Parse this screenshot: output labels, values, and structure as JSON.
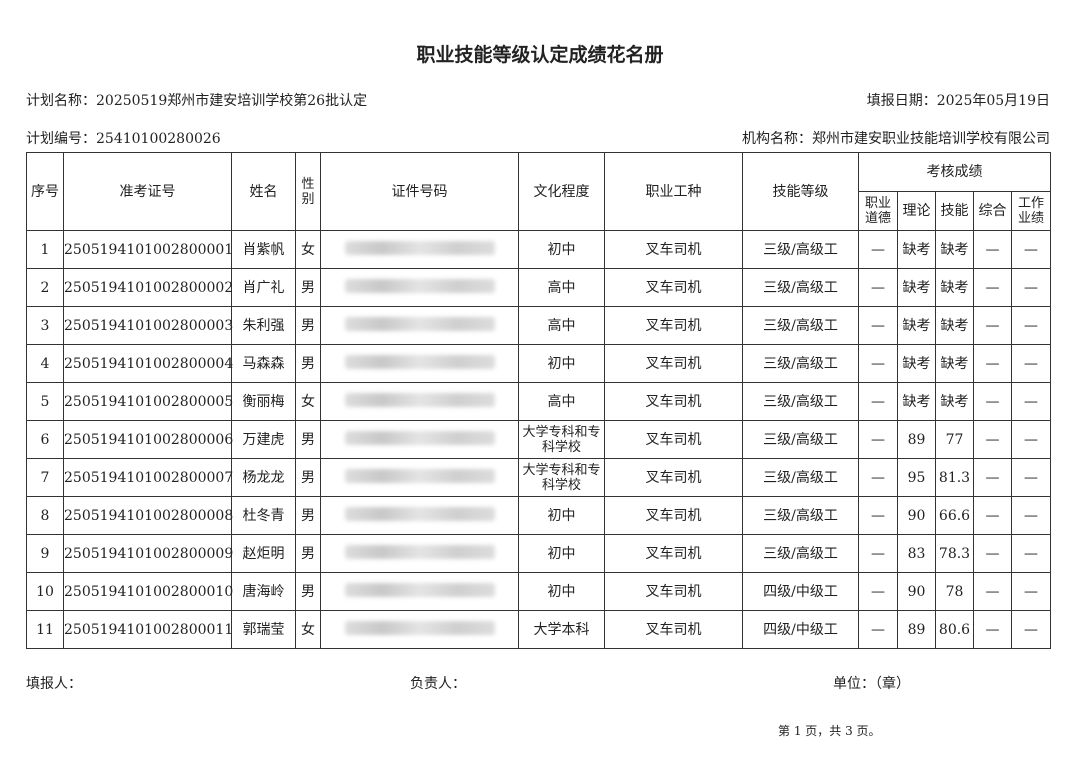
{
  "title": "职业技能等级认定成绩花名册",
  "plan_name": "计划名称：20250519郑州市建安培训学校第26批认定",
  "fill_date": "填报日期：2025年05月19日",
  "plan_no": "计划编号：25410100280026",
  "org_name": "机构名称：郑州市建安职业技能培训学校有限公司",
  "headers": {
    "seq": "序号",
    "exam_no": "准考证号",
    "name": "姓名",
    "gender": "性别",
    "id_no": "证件号码",
    "education": "文化程度",
    "occupation": "职业工种",
    "level": "技能等级",
    "scores": "考核成绩",
    "ethics": "职业道德",
    "theory": "理论",
    "skill": "技能",
    "overall": "综合",
    "work": "工作业绩"
  },
  "rows": [
    {
      "seq": "1",
      "exam_no": "2505194101002800001",
      "name": "肖紫帆",
      "gender": "女",
      "education": "初中",
      "occupation": "叉车司机",
      "level": "三级/高级工",
      "ethics": "—",
      "theory": "缺考",
      "skill": "缺考",
      "overall": "—",
      "work": "—"
    },
    {
      "seq": "2",
      "exam_no": "2505194101002800002",
      "name": "肖广礼",
      "gender": "男",
      "education": "高中",
      "occupation": "叉车司机",
      "level": "三级/高级工",
      "ethics": "—",
      "theory": "缺考",
      "skill": "缺考",
      "overall": "—",
      "work": "—"
    },
    {
      "seq": "3",
      "exam_no": "2505194101002800003",
      "name": "朱利强",
      "gender": "男",
      "education": "高中",
      "occupation": "叉车司机",
      "level": "三级/高级工",
      "ethics": "—",
      "theory": "缺考",
      "skill": "缺考",
      "overall": "—",
      "work": "—"
    },
    {
      "seq": "4",
      "exam_no": "2505194101002800004",
      "name": "马森森",
      "gender": "男",
      "education": "初中",
      "occupation": "叉车司机",
      "level": "三级/高级工",
      "ethics": "—",
      "theory": "缺考",
      "skill": "缺考",
      "overall": "—",
      "work": "—"
    },
    {
      "seq": "5",
      "exam_no": "2505194101002800005",
      "name": "衡丽梅",
      "gender": "女",
      "education": "高中",
      "occupation": "叉车司机",
      "level": "三级/高级工",
      "ethics": "—",
      "theory": "缺考",
      "skill": "缺考",
      "overall": "—",
      "work": "—"
    },
    {
      "seq": "6",
      "exam_no": "2505194101002800006",
      "name": "万建虎",
      "gender": "男",
      "education": "大学专科和专科学校",
      "occupation": "叉车司机",
      "level": "三级/高级工",
      "ethics": "—",
      "theory": "89",
      "skill": "77",
      "overall": "—",
      "work": "—"
    },
    {
      "seq": "7",
      "exam_no": "2505194101002800007",
      "name": "杨龙龙",
      "gender": "男",
      "education": "大学专科和专科学校",
      "occupation": "叉车司机",
      "level": "三级/高级工",
      "ethics": "—",
      "theory": "95",
      "skill": "81.3",
      "overall": "—",
      "work": "—"
    },
    {
      "seq": "8",
      "exam_no": "2505194101002800008",
      "name": "杜冬青",
      "gender": "男",
      "education": "初中",
      "occupation": "叉车司机",
      "level": "三级/高级工",
      "ethics": "—",
      "theory": "90",
      "skill": "66.6",
      "overall": "—",
      "work": "—"
    },
    {
      "seq": "9",
      "exam_no": "2505194101002800009",
      "name": "赵炬明",
      "gender": "男",
      "education": "初中",
      "occupation": "叉车司机",
      "level": "三级/高级工",
      "ethics": "—",
      "theory": "83",
      "skill": "78.3",
      "overall": "—",
      "work": "—"
    },
    {
      "seq": "10",
      "exam_no": "2505194101002800010",
      "name": "唐海岭",
      "gender": "男",
      "education": "初中",
      "occupation": "叉车司机",
      "level": "四级/中级工",
      "ethics": "—",
      "theory": "90",
      "skill": "78",
      "overall": "—",
      "work": "—"
    },
    {
      "seq": "11",
      "exam_no": "2505194101002800011",
      "name": "郭瑞莹",
      "gender": "女",
      "education": "大学本科",
      "occupation": "叉车司机",
      "level": "四级/中级工",
      "ethics": "—",
      "theory": "89",
      "skill": "80.6",
      "overall": "—",
      "work": "—"
    }
  ],
  "footer": {
    "filler": "填报人：",
    "manager": "负责人：",
    "unit": "单位：（章）",
    "pager": "第 1 页，共 3 页。"
  }
}
